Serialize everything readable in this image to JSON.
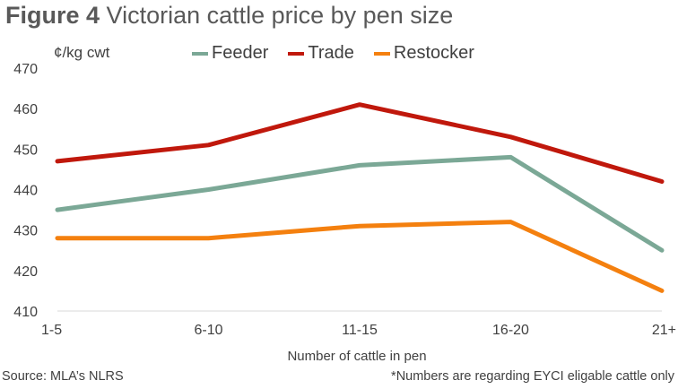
{
  "header": {
    "figure": "Figure 4",
    "title": "Victorian cattle price by pen size"
  },
  "footer": {
    "source": "Source: MLA’s NLRS",
    "note": "*Numbers are regarding EYCI eligable cattle only"
  },
  "chart_data": {
    "type": "line",
    "unit_label": "¢/kg cwt",
    "xlabel": "Number of cattle in pen",
    "ylabel": "",
    "categories": [
      "1-5",
      "6-10",
      "11-15",
      "16-20",
      "21+"
    ],
    "ylim": [
      410,
      470
    ],
    "yticks": [
      410,
      420,
      430,
      440,
      450,
      460,
      470
    ],
    "grid": false,
    "legend_position": "top",
    "series": [
      {
        "name": "Feeder",
        "color": "#7ba896",
        "values": [
          435,
          440,
          446,
          448,
          425
        ]
      },
      {
        "name": "Trade",
        "color": "#c0180c",
        "values": [
          447,
          451,
          461,
          453,
          442
        ]
      },
      {
        "name": "Restocker",
        "color": "#f4800f",
        "values": [
          428,
          428,
          431,
          432,
          415
        ]
      }
    ]
  }
}
